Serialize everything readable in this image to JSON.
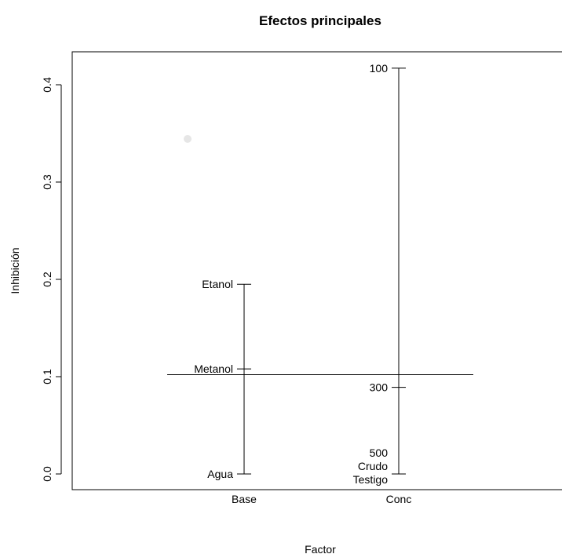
{
  "chart_data": {
    "type": "design_plot",
    "title": "Efectos principales",
    "xlabel": "Factor",
    "ylabel": "Inhibición",
    "ylim": [
      0,
      0.42
    ],
    "y_ticks": [
      0.0,
      0.1,
      0.2,
      0.3,
      0.4
    ],
    "y_tick_labels": [
      "0.0",
      "0.1",
      "0.2",
      "0.3",
      "0.4"
    ],
    "grand_mean": 0.102,
    "factors": [
      {
        "name": "Base",
        "levels": [
          {
            "label": "Etanol",
            "value": 0.195
          },
          {
            "label": "Metanol",
            "value": 0.108
          },
          {
            "label": "Agua",
            "value": 0.0
          }
        ]
      },
      {
        "name": "Conc",
        "levels": [
          {
            "label": "100",
            "value": 0.417
          },
          {
            "label": "300",
            "value": 0.089
          },
          {
            "label": "500",
            "value": 0.0
          },
          {
            "label": "Crudo",
            "value": 0.0
          },
          {
            "label": "Testigo",
            "value": 0.0
          }
        ]
      }
    ],
    "grid": false,
    "legend": "none"
  }
}
